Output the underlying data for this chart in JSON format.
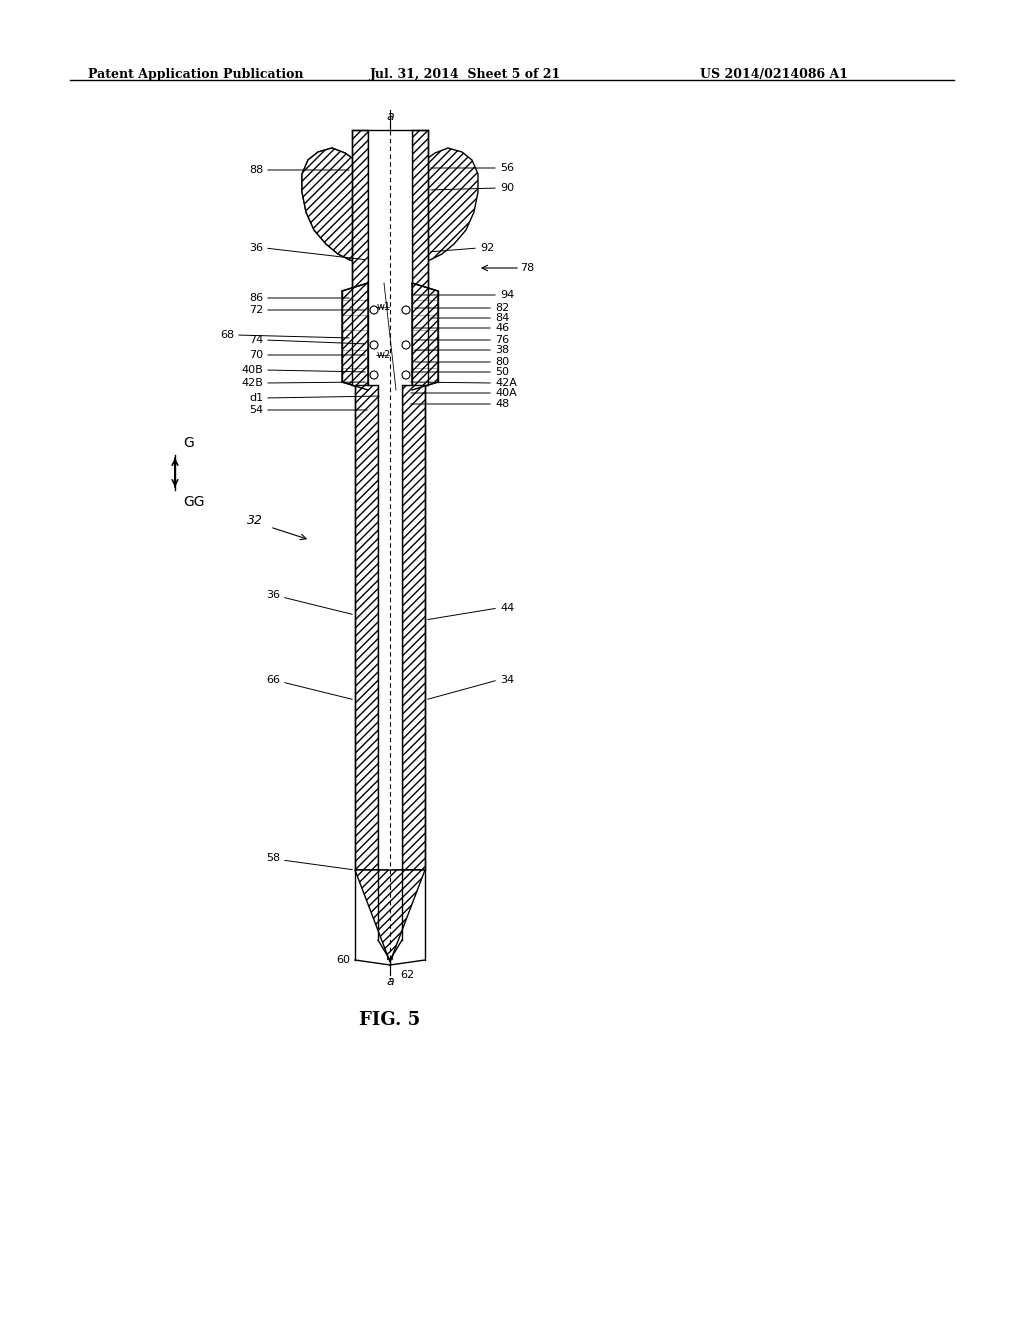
{
  "header_left": "Patent Application Publication",
  "header_mid": "Jul. 31, 2014  Sheet 5 of 21",
  "header_right": "US 2014/0214086 A1",
  "fig_label": "FIG. 5",
  "bg_color": "#ffffff",
  "line_color": "#000000",
  "hatch_color": "#000000"
}
